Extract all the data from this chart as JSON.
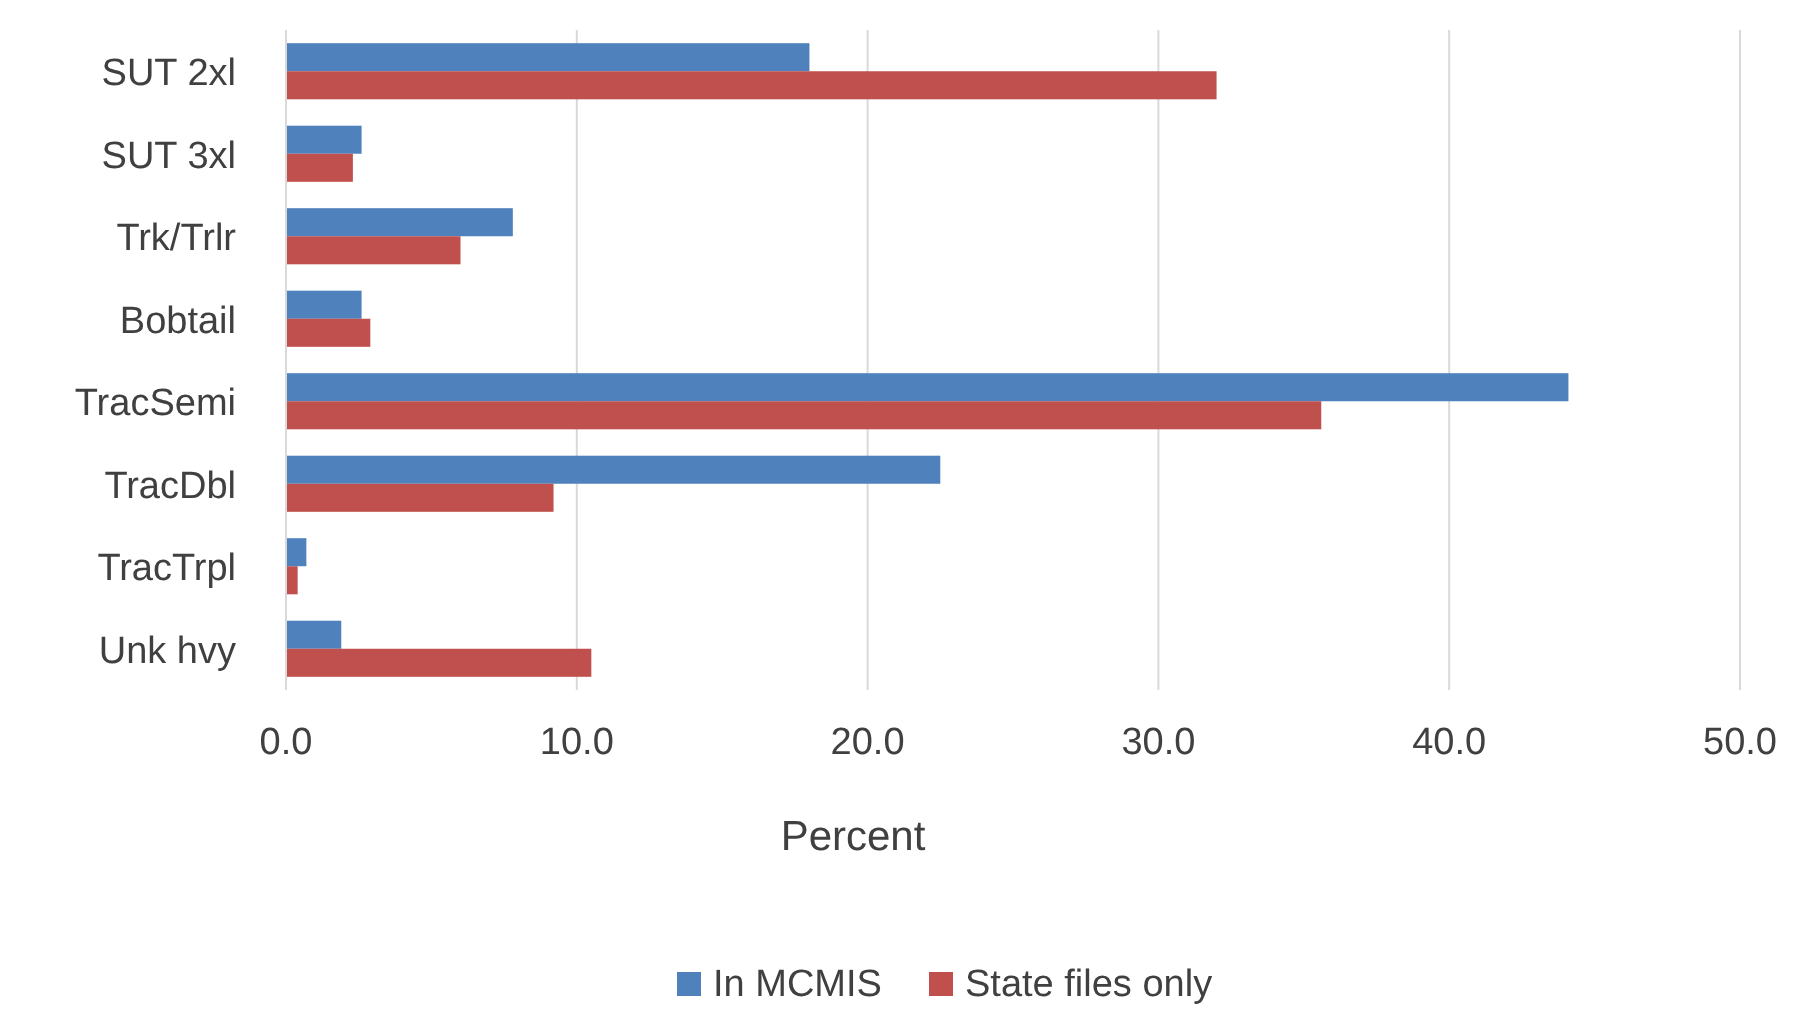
{
  "chart_data": {
    "type": "bar",
    "orientation": "horizontal",
    "xlabel": "Percent",
    "categories": [
      "SUT 2xl",
      "SUT 3xl",
      "Trk/Trlr",
      "Bobtail",
      "TracSemi",
      "TracDbl",
      "TracTrpl",
      "Unk hvy"
    ],
    "series": [
      {
        "name": "In MCMIS",
        "color": "#4f81bd",
        "values": [
          18.0,
          2.6,
          7.8,
          2.6,
          44.1,
          22.5,
          0.7,
          1.9
        ]
      },
      {
        "name": "State files only",
        "color": "#c0504d",
        "values": [
          32.0,
          2.3,
          6.0,
          2.9,
          35.6,
          9.2,
          0.4,
          10.5
        ]
      }
    ],
    "xlim": [
      0,
      50
    ],
    "xticks": [
      {
        "value": 0,
        "label": "0.0"
      },
      {
        "value": 10,
        "label": "10.0"
      },
      {
        "value": 20,
        "label": "20.0"
      },
      {
        "value": 30,
        "label": "30.0"
      },
      {
        "value": 40,
        "label": "40.0"
      },
      {
        "value": 50,
        "label": "50.0"
      }
    ],
    "grid": "x",
    "legend": "bottom"
  }
}
